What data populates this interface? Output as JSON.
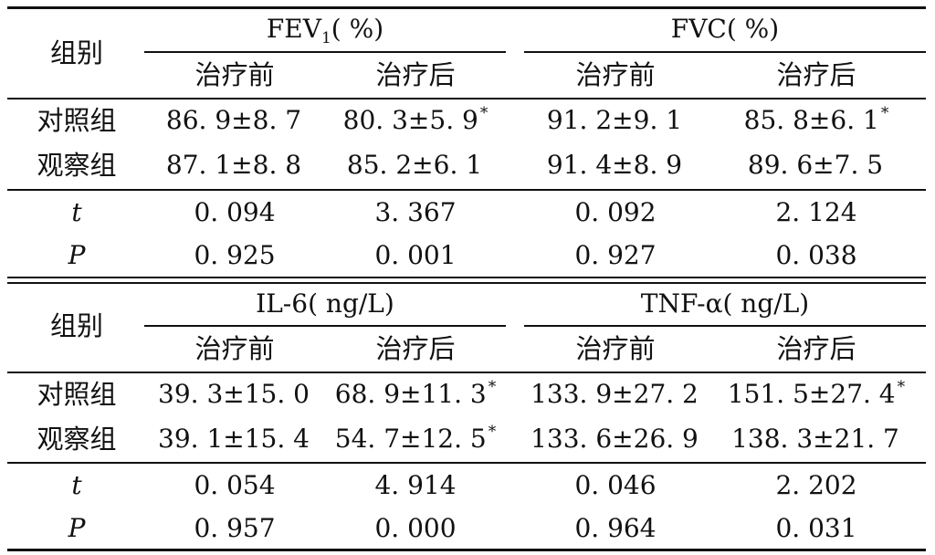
{
  "table1": {
    "group_label": "组别",
    "fev1": {
      "label_main": "FEV",
      "label_sub": "1",
      "label_unit": "( %)"
    },
    "fvc": {
      "label": "FVC( %)"
    },
    "sub_headers": [
      "治疗前",
      "治疗后",
      "治疗前",
      "治疗后"
    ],
    "rows": [
      {
        "label": "对照组",
        "cells": [
          "86. 9±8. 7",
          "80. 3±5. 9",
          "91. 2±9. 1",
          "85. 8±6. 1"
        ],
        "marks": [
          "",
          "*",
          "",
          "*"
        ]
      },
      {
        "label": "观察组",
        "cells": [
          "87. 1±8. 8",
          "85. 2±6. 1",
          "91. 4±8. 9",
          "89. 6±7. 5"
        ],
        "marks": [
          "",
          "",
          "",
          ""
        ]
      }
    ],
    "stats": [
      {
        "label": "t",
        "cells": [
          "0. 094",
          "3. 367",
          "0. 092",
          "2. 124"
        ]
      },
      {
        "label": "P",
        "cells": [
          "0. 925",
          "0. 001",
          "0. 927",
          "0. 038"
        ]
      }
    ]
  },
  "table2": {
    "group_label": "组别",
    "il6": {
      "label": "IL-6( ng/L)"
    },
    "tnf": {
      "label": "TNF-α( ng/L)"
    },
    "sub_headers": [
      "治疗前",
      "治疗后",
      "治疗前",
      "治疗后"
    ],
    "rows": [
      {
        "label": "对照组",
        "cells": [
          "39. 3±15. 0",
          "68. 9±11. 3",
          "133. 9±27. 2",
          "151. 5±27. 4"
        ],
        "marks": [
          "",
          "*",
          "",
          "*"
        ]
      },
      {
        "label": "观察组",
        "cells": [
          "39. 1±15. 4",
          "54. 7±12. 5",
          "133. 6±26. 9",
          "138. 3±21. 7"
        ],
        "marks": [
          "",
          "*",
          "",
          ""
        ]
      }
    ],
    "stats": [
      {
        "label": "t",
        "cells": [
          "0. 054",
          "4. 914",
          "0. 046",
          "2. 202"
        ]
      },
      {
        "label": "P",
        "cells": [
          "0. 957",
          "0. 000",
          "0. 964",
          "0. 031"
        ]
      }
    ]
  }
}
